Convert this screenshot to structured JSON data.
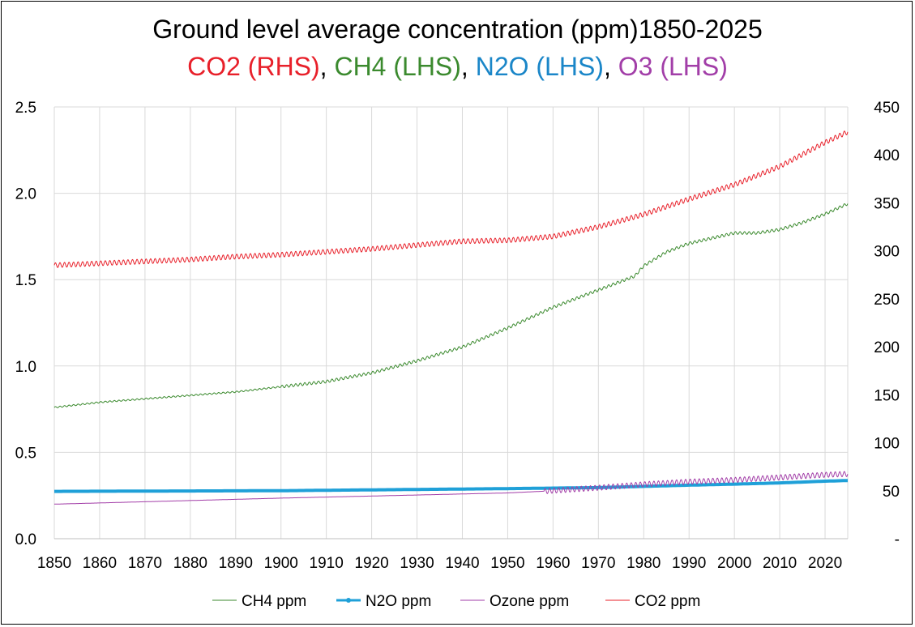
{
  "chart_data": {
    "type": "line",
    "title": "Ground level average concentration (ppm)1850-2025",
    "subtitle_parts": [
      {
        "text": "CO2 (RHS)",
        "color": "#e8202a"
      },
      {
        "text": ", ",
        "color": "#000000"
      },
      {
        "text": "CH4 (LHS)",
        "color": "#3b8a2e"
      },
      {
        "text": ", ",
        "color": "#000000"
      },
      {
        "text": "N2O (LHS)",
        "color": "#1a86c8"
      },
      {
        "text": ", ",
        "color": "#000000"
      },
      {
        "text": "O3 (LHS)",
        "color": "#a23ea8"
      }
    ],
    "xlim": [
      1850,
      2025
    ],
    "x_ticks": [
      "1850",
      "1860",
      "1870",
      "1880",
      "1890",
      "1900",
      "1910",
      "1920",
      "1930",
      "1940",
      "1950",
      "1960",
      "1970",
      "1980",
      "1990",
      "2000",
      "2010",
      "2020"
    ],
    "y_left": {
      "range": [
        0,
        2.5
      ],
      "ticks": [
        "0.0",
        "0.5",
        "1.0",
        "1.5",
        "2.0",
        "2.5"
      ]
    },
    "y_right": {
      "range": [
        0,
        450
      ],
      "ticks": [
        "-",
        "50",
        "100",
        "150",
        "200",
        "250",
        "300",
        "350",
        "400",
        "450"
      ]
    },
    "grid": true,
    "legend_position": "bottom",
    "series": [
      {
        "name": "CH4 ppm",
        "axis": "left",
        "color": "#3b8a2e",
        "years": [
          1850,
          1860,
          1870,
          1880,
          1890,
          1900,
          1910,
          1920,
          1930,
          1940,
          1950,
          1955,
          1960,
          1965,
          1970,
          1975,
          1978,
          1980,
          1985,
          1990,
          1995,
          2000,
          2005,
          2010,
          2015,
          2020,
          2025
        ],
        "values": [
          0.76,
          0.79,
          0.81,
          0.83,
          0.85,
          0.88,
          0.91,
          0.96,
          1.03,
          1.11,
          1.22,
          1.28,
          1.34,
          1.39,
          1.44,
          1.49,
          1.52,
          1.58,
          1.66,
          1.71,
          1.74,
          1.77,
          1.77,
          1.79,
          1.83,
          1.88,
          1.94
        ],
        "seasonal_amp": 0.008
      },
      {
        "name": "N2O ppm",
        "axis": "left",
        "color": "#1fa0d8",
        "years": [
          1850,
          1900,
          1950,
          1970,
          1990,
          2000,
          2010,
          2020,
          2025
        ],
        "values": [
          0.274,
          0.278,
          0.29,
          0.296,
          0.31,
          0.316,
          0.323,
          0.333,
          0.337
        ],
        "seasonal_amp": 0
      },
      {
        "name": "Ozone ppm",
        "axis": "left",
        "color": "#a23ea8",
        "years": [
          1850,
          1900,
          1950,
          1958,
          1970,
          1980,
          1990,
          2000,
          2010,
          2020,
          2025
        ],
        "values": [
          0.2,
          0.235,
          0.265,
          0.275,
          0.295,
          0.315,
          0.33,
          0.34,
          0.355,
          0.37,
          0.375
        ],
        "seasonal_amp": 0.015
      },
      {
        "name": "CO2 ppm",
        "axis": "right",
        "color": "#e8202a",
        "years": [
          1850,
          1860,
          1870,
          1880,
          1890,
          1900,
          1910,
          1920,
          1930,
          1940,
          1950,
          1960,
          1970,
          1980,
          1990,
          2000,
          2010,
          2020,
          2025
        ],
        "values": [
          285,
          287,
          289,
          291,
          294,
          296,
          299,
          302,
          306,
          310,
          311,
          315,
          325,
          338,
          354,
          369,
          388,
          413,
          424
        ],
        "seasonal_amp": 2.5
      }
    ]
  }
}
